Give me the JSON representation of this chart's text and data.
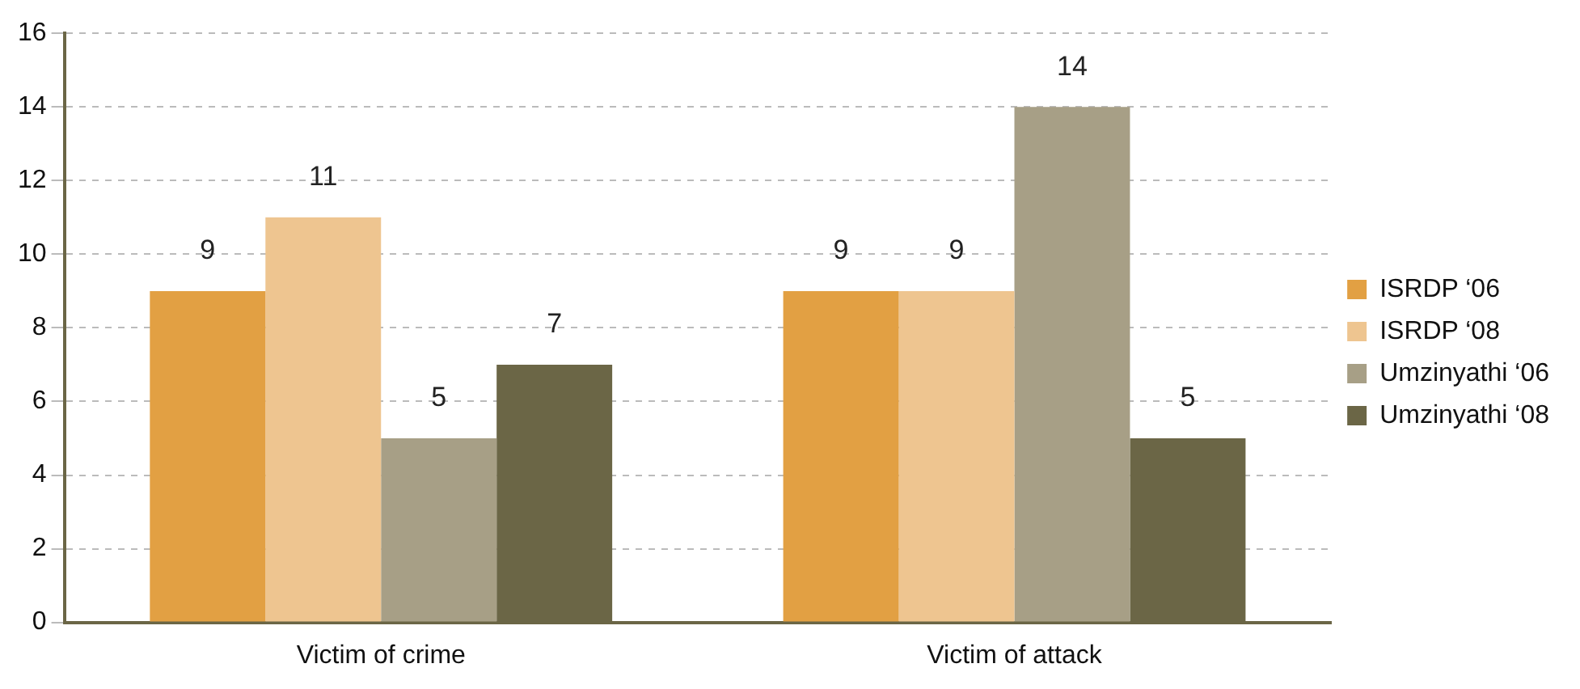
{
  "chart_data": {
    "type": "bar",
    "categories": [
      "Victim of crime",
      "Victim of attack"
    ],
    "series": [
      {
        "name": "ISRDP ‘06",
        "color": "#e2a043",
        "values": [
          9,
          9
        ]
      },
      {
        "name": "ISRDP ‘08",
        "color": "#eec590",
        "values": [
          11,
          9
        ]
      },
      {
        "name": "Umzinyathi ‘06",
        "color": "#a79f86",
        "values": [
          5,
          14
        ]
      },
      {
        "name": "Umzinyathi ‘08",
        "color": "#6b6646",
        "values": [
          7,
          5
        ]
      }
    ],
    "ylim": [
      0,
      16
    ],
    "yticks": [
      0,
      2,
      4,
      6,
      8,
      10,
      12,
      14,
      16
    ],
    "grid": "y",
    "legend": "right",
    "data_labels": true
  }
}
